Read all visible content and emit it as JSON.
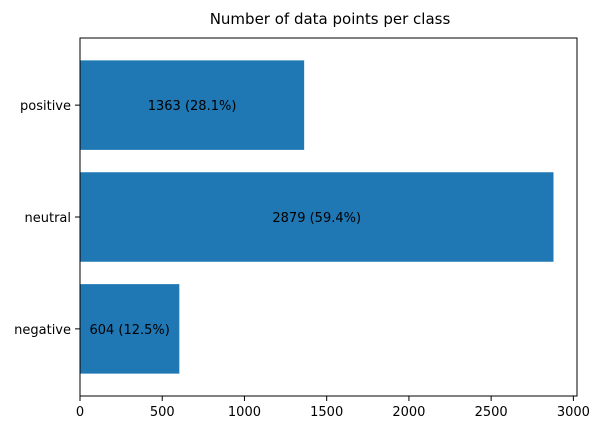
{
  "chart_data": {
    "type": "bar",
    "orientation": "horizontal",
    "title": "Number of data points per class",
    "xlabel": "",
    "ylabel": "",
    "categories": [
      "negative",
      "neutral",
      "positive"
    ],
    "values": [
      604,
      2879,
      1363
    ],
    "data_labels": [
      "604 (12.5%)",
      "2879 (59.4%)",
      "1363 (28.1%)"
    ],
    "xlim": [
      0,
      3022
    ],
    "xticks": [
      0,
      500,
      1000,
      1500,
      2000,
      2500,
      3000
    ],
    "grid": false,
    "bar_color": "#1f77b4"
  }
}
